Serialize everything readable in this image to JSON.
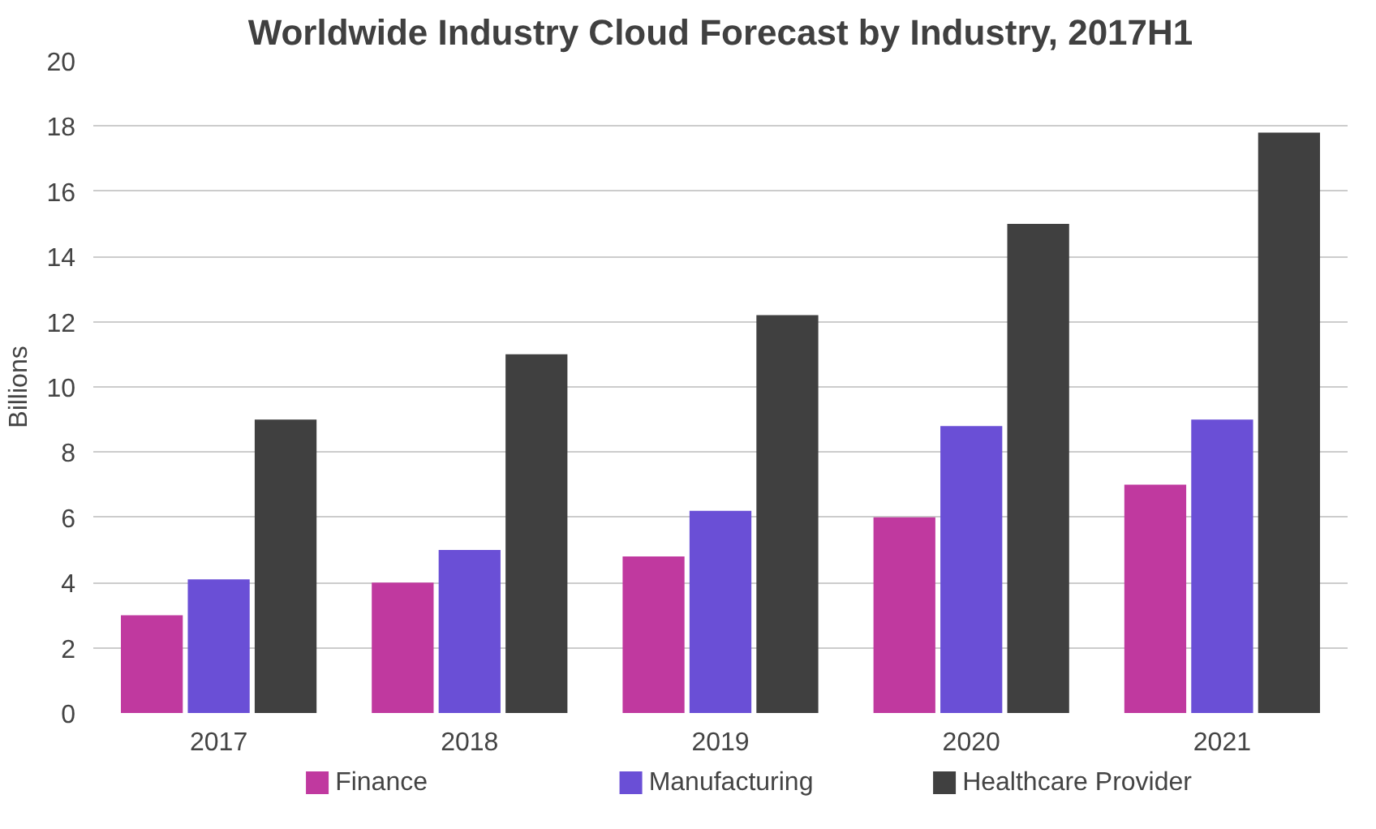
{
  "chart_data": {
    "type": "bar",
    "title": "Worldwide Industry Cloud Forecast by Industry, 2017H1",
    "ylabel": "Billions",
    "categories": [
      "2017",
      "2018",
      "2019",
      "2020",
      "2021"
    ],
    "series": [
      {
        "name": "Finance",
        "color": "#c0399f",
        "values": [
          3,
          4,
          4.8,
          6,
          7
        ]
      },
      {
        "name": "Manufacturing",
        "color": "#6a4fd6",
        "values": [
          4.1,
          5,
          6.2,
          8.8,
          9
        ]
      },
      {
        "name": "Healthcare Provider",
        "color": "#404040",
        "values": [
          9,
          11,
          12.2,
          15,
          17.8
        ]
      }
    ],
    "ylim": [
      0,
      20
    ],
    "yticks": [
      0,
      2,
      4,
      6,
      8,
      10,
      12,
      14,
      16,
      18,
      20
    ],
    "grid": "y",
    "legend": "bottom"
  }
}
